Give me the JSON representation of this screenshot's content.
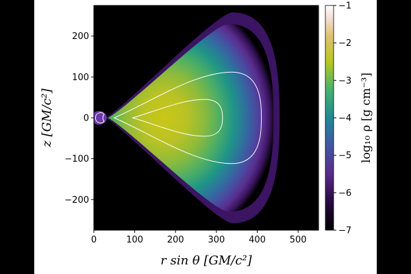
{
  "chart_data": {
    "type": "heatmap",
    "title": "",
    "xlabel": "r sin θ [GM/c²]",
    "ylabel": "z [GM/c²]",
    "xlim": [
      0,
      550
    ],
    "ylim": [
      -275,
      275
    ],
    "xticks": [
      "0",
      "100",
      "200",
      "300",
      "400",
      "500"
    ],
    "yticks": [
      "200",
      "100",
      "0",
      "−100",
      "−200"
    ],
    "colorbar": {
      "label": "log₁₀ ρ [g cm⁻³]",
      "range": [
        -7,
        -1
      ],
      "ticks": [
        "−1",
        "−2",
        "−3",
        "−4",
        "−5",
        "−6",
        "−7"
      ],
      "colormap": "gist_earth-like: black → purple → blue → teal → green → yellow → white"
    },
    "structure": {
      "torus_center": [
        200,
        0
      ],
      "torus_outer_edge_r": 410,
      "torus_max_height_z": 220,
      "inner_edge_r": 35,
      "contours": [
        {
          "level": -2.7,
          "extent_r": [
            95,
            315
          ],
          "extent_z": [
            -45,
            45
          ]
        },
        {
          "level": -3.3,
          "extent_r": [
            50,
            410
          ],
          "extent_z": [
            -112,
            112
          ]
        }
      ],
      "inner_blob_r": 12
    },
    "background_color": "#000000"
  }
}
